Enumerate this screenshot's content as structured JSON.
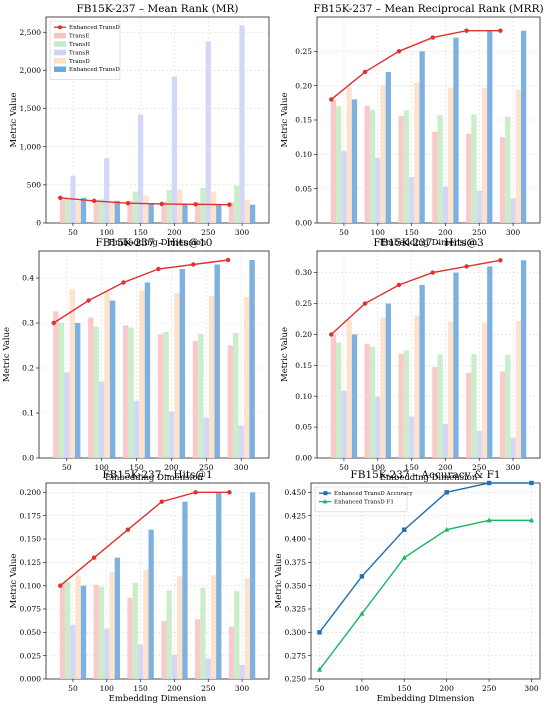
{
  "chart_data": [
    {
      "type": "bar",
      "title": "FB15K-237 – Mean Rank (MR)",
      "xlabel": "Embedding Dimension",
      "ylabel": "Metric Value",
      "categories": [
        "50",
        "100",
        "150",
        "200",
        "250",
        "300"
      ],
      "ylim": [
        0,
        2700
      ],
      "yticks": [
        0,
        500,
        1000,
        1500,
        2000,
        2500
      ],
      "ytick_labels": [
        "0",
        "500",
        "1,000",
        "1,500",
        "2,000",
        "2,500"
      ],
      "grid": true,
      "legend": "top-left",
      "series": [
        {
          "name": "TransE",
          "kind": "bar",
          "color": "#f9c4c4",
          "values": [
            310,
            300,
            290,
            280,
            270,
            270
          ]
        },
        {
          "name": "TransH",
          "kind": "bar",
          "color": "#c4ecc4",
          "values": [
            320,
            310,
            410,
            430,
            460,
            490
          ]
        },
        {
          "name": "TransR",
          "kind": "bar",
          "color": "#d0d3f5",
          "values": [
            620,
            850,
            1420,
            1920,
            2380,
            2590
          ]
        },
        {
          "name": "TransD",
          "kind": "bar",
          "color": "#fde0c8",
          "values": [
            290,
            280,
            360,
            440,
            410,
            300
          ]
        },
        {
          "name": "Enhanced TransD",
          "kind": "bar",
          "color": "#6fa8dc",
          "values": [
            330,
            290,
            260,
            250,
            245,
            240
          ]
        },
        {
          "name": "Enhanced TransD",
          "kind": "line",
          "color": "#e03030",
          "values": [
            330,
            290,
            260,
            250,
            245,
            240
          ]
        }
      ]
    },
    {
      "type": "bar",
      "title": "FB15K-237 – Mean Reciprocal Rank (MRR)",
      "xlabel": "Embedding Dimension",
      "ylabel": "Metric Value",
      "categories": [
        "50",
        "100",
        "150",
        "200",
        "250",
        "300"
      ],
      "ylim": [
        0,
        0.3
      ],
      "yticks": [
        0,
        0.05,
        0.1,
        0.15,
        0.2,
        0.25
      ],
      "ytick_labels": [
        "0.00",
        "0.05",
        "0.10",
        "0.15",
        "0.20",
        "0.25"
      ],
      "grid": true,
      "series": [
        {
          "name": "TransE",
          "kind": "bar",
          "color": "#f9c4c4",
          "values": [
            0.179,
            0.171,
            0.156,
            0.133,
            0.13,
            0.125
          ]
        },
        {
          "name": "TransH",
          "kind": "bar",
          "color": "#c4ecc4",
          "values": [
            0.17,
            0.165,
            0.164,
            0.157,
            0.158,
            0.155
          ]
        },
        {
          "name": "TransR",
          "kind": "bar",
          "color": "#d0d3f5",
          "values": [
            0.105,
            0.095,
            0.067,
            0.053,
            0.047,
            0.036
          ]
        },
        {
          "name": "TransD",
          "kind": "bar",
          "color": "#fde0c8",
          "values": [
            0.198,
            0.201,
            0.204,
            0.197,
            0.196,
            0.194
          ]
        },
        {
          "name": "Enhanced TransD",
          "kind": "bar",
          "color": "#6fa8dc",
          "values": [
            0.18,
            0.22,
            0.25,
            0.27,
            0.28,
            0.28
          ]
        },
        {
          "name": "Enhanced TransD",
          "kind": "line",
          "color": "#e03030",
          "values": [
            0.18,
            0.22,
            0.25,
            0.27,
            0.28,
            0.28
          ]
        }
      ]
    },
    {
      "type": "bar",
      "title": "FB15K-237 – Hits@10",
      "xlabel": "Embedding Dimension",
      "ylabel": "Metric Value",
      "categories": [
        "50",
        "100",
        "150",
        "200",
        "250",
        "300"
      ],
      "ylim": [
        0,
        0.46
      ],
      "yticks": [
        0,
        0.1,
        0.2,
        0.3,
        0.4
      ],
      "ytick_labels": [
        "0.0",
        "0.1",
        "0.2",
        "0.3",
        "0.4"
      ],
      "grid": true,
      "series": [
        {
          "name": "TransE",
          "kind": "bar",
          "color": "#f9c4c4",
          "values": [
            0.326,
            0.312,
            0.295,
            0.275,
            0.26,
            0.25
          ]
        },
        {
          "name": "TransH",
          "kind": "bar",
          "color": "#c4ecc4",
          "values": [
            0.3,
            0.292,
            0.29,
            0.28,
            0.276,
            0.278
          ]
        },
        {
          "name": "TransR",
          "kind": "bar",
          "color": "#d0d3f5",
          "values": [
            0.19,
            0.17,
            0.127,
            0.103,
            0.09,
            0.072
          ]
        },
        {
          "name": "TransD",
          "kind": "bar",
          "color": "#fde0c8",
          "values": [
            0.375,
            0.37,
            0.372,
            0.367,
            0.36,
            0.358
          ]
        },
        {
          "name": "Enhanced TransD",
          "kind": "bar",
          "color": "#6fa8dc",
          "values": [
            0.3,
            0.35,
            0.39,
            0.42,
            0.43,
            0.44
          ]
        },
        {
          "name": "Enhanced TransD",
          "kind": "line",
          "color": "#e03030",
          "values": [
            0.3,
            0.35,
            0.39,
            0.42,
            0.43,
            0.44
          ]
        }
      ]
    },
    {
      "type": "bar",
      "title": "FB15K-237 – Hits@3",
      "xlabel": "Embedding Dimension",
      "ylabel": "Metric Value",
      "categories": [
        "50",
        "100",
        "150",
        "200",
        "250",
        "300"
      ],
      "ylim": [
        0,
        0.335
      ],
      "yticks": [
        0,
        0.05,
        0.1,
        0.15,
        0.2,
        0.25,
        0.3
      ],
      "ytick_labels": [
        "0.00",
        "0.05",
        "0.10",
        "0.15",
        "0.20",
        "0.25",
        "0.30"
      ],
      "grid": true,
      "series": [
        {
          "name": "TransE",
          "kind": "bar",
          "color": "#f9c4c4",
          "values": [
            0.199,
            0.185,
            0.169,
            0.147,
            0.138,
            0.14
          ]
        },
        {
          "name": "TransH",
          "kind": "bar",
          "color": "#c4ecc4",
          "values": [
            0.187,
            0.18,
            0.174,
            0.168,
            0.168,
            0.167
          ]
        },
        {
          "name": "TransR",
          "kind": "bar",
          "color": "#d0d3f5",
          "values": [
            0.109,
            0.099,
            0.067,
            0.055,
            0.044,
            0.033
          ]
        },
        {
          "name": "TransD",
          "kind": "bar",
          "color": "#fde0c8",
          "values": [
            0.223,
            0.227,
            0.231,
            0.221,
            0.219,
            0.222
          ]
        },
        {
          "name": "Enhanced TransD",
          "kind": "bar",
          "color": "#6fa8dc",
          "values": [
            0.2,
            0.25,
            0.28,
            0.3,
            0.31,
            0.32
          ]
        },
        {
          "name": "Enhanced TransD",
          "kind": "line",
          "color": "#e03030",
          "values": [
            0.2,
            0.25,
            0.28,
            0.3,
            0.31,
            0.32
          ]
        }
      ]
    },
    {
      "type": "bar",
      "title": "FB15K-237 – Hits@1",
      "xlabel": "Embedding Dimension",
      "ylabel": "Metric Value",
      "categories": [
        "50",
        "100",
        "150",
        "200",
        "250",
        "300"
      ],
      "ylim": [
        0,
        0.21
      ],
      "yticks": [
        0,
        0.025,
        0.05,
        0.075,
        0.1,
        0.125,
        0.15,
        0.175,
        0.2
      ],
      "ytick_labels": [
        "0.000",
        "0.025",
        "0.050",
        "0.075",
        "0.100",
        "0.125",
        "0.150",
        "0.175",
        "0.200"
      ],
      "grid": true,
      "series": [
        {
          "name": "TransE",
          "kind": "bar",
          "color": "#f9c4c4",
          "values": [
            0.103,
            0.101,
            0.087,
            0.062,
            0.064,
            0.056
          ]
        },
        {
          "name": "TransH",
          "kind": "bar",
          "color": "#c4ecc4",
          "values": [
            0.104,
            0.099,
            0.103,
            0.095,
            0.098,
            0.094
          ]
        },
        {
          "name": "TransR",
          "kind": "bar",
          "color": "#d0d3f5",
          "values": [
            0.058,
            0.054,
            0.037,
            0.026,
            0.022,
            0.015
          ]
        },
        {
          "name": "TransD",
          "kind": "bar",
          "color": "#fde0c8",
          "values": [
            0.111,
            0.115,
            0.117,
            0.11,
            0.111,
            0.108
          ]
        },
        {
          "name": "Enhanced TransD",
          "kind": "bar",
          "color": "#6fa8dc",
          "values": [
            0.1,
            0.13,
            0.16,
            0.19,
            0.2,
            0.2
          ]
        },
        {
          "name": "Enhanced TransD",
          "kind": "line",
          "color": "#e03030",
          "values": [
            0.1,
            0.13,
            0.16,
            0.19,
            0.2,
            0.2
          ]
        }
      ]
    },
    {
      "type": "line",
      "title": "FB15K-237 – Accuracy & F1",
      "xlabel": "Embedding Dimension",
      "ylabel": "Metric Value",
      "x": [
        50,
        100,
        150,
        200,
        250,
        300
      ],
      "xlim": [
        40,
        310
      ],
      "xticks": [
        50,
        100,
        150,
        200,
        250,
        300
      ],
      "ylim": [
        0.25,
        0.46
      ],
      "yticks": [
        0.25,
        0.275,
        0.3,
        0.325,
        0.35,
        0.375,
        0.4,
        0.425,
        0.45
      ],
      "ytick_labels": [
        "0.250",
        "0.275",
        "0.300",
        "0.325",
        "0.350",
        "0.375",
        "0.400",
        "0.425",
        "0.450"
      ],
      "grid": true,
      "legend": "top-left",
      "series": [
        {
          "name": "Enhanced TransD Accuracy",
          "color": "#1f6fb2",
          "marker": "square",
          "values": [
            0.3,
            0.36,
            0.41,
            0.45,
            0.46,
            0.46
          ]
        },
        {
          "name": "Enhanced TransD F1",
          "color": "#17b862",
          "marker": "triangle",
          "values": [
            0.26,
            0.32,
            0.38,
            0.41,
            0.42,
            0.42
          ]
        }
      ]
    }
  ]
}
